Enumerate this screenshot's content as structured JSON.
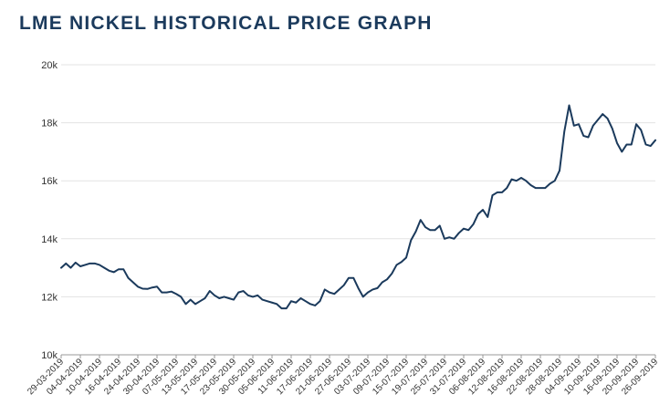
{
  "chart_data": {
    "type": "line",
    "title": "LME NICKEL HISTORICAL PRICE GRAPH",
    "xlabel": "",
    "ylabel": "",
    "ylim": [
      10000,
      20000
    ],
    "y_ticks": [
      10000,
      12000,
      14000,
      16000,
      18000,
      20000
    ],
    "y_tick_labels": [
      "10k",
      "12k",
      "14k",
      "16k",
      "18k",
      "20k"
    ],
    "grid": true,
    "line_color": "#1b3a5c",
    "x_tick_labels": [
      "29-03-2019",
      "04-04-2019",
      "10-04-2019",
      "16-04-2019",
      "24-04-2019",
      "30-04-2019",
      "07-05-2019",
      "13-05-2019",
      "17-05-2019",
      "23-05-2019",
      "30-05-2019",
      "05-06-2019",
      "11-06-2019",
      "17-06-2019",
      "21-06-2019",
      "27-06-2019",
      "03-07-2019",
      "09-07-2019",
      "15-07-2019",
      "19-07-2019",
      "25-07-2019",
      "31-07-2019",
      "06-08-2019",
      "12-08-2019",
      "16-08-2019",
      "22-08-2019",
      "28-08-2019",
      "04-09-2019",
      "10-09-2019",
      "16-09-2019",
      "20-09-2019",
      "26-09-2019"
    ],
    "series": [
      {
        "name": "LME Nickel",
        "values": [
          13000,
          13150,
          13000,
          13180,
          13050,
          13100,
          13150,
          13150,
          13100,
          13000,
          12900,
          12850,
          12950,
          12950,
          12650,
          12500,
          12350,
          12280,
          12270,
          12320,
          12350,
          12150,
          12150,
          12180,
          12100,
          12000,
          11750,
          11900,
          11750,
          11850,
          11950,
          12200,
          12050,
          11950,
          12000,
          11950,
          11900,
          12150,
          12200,
          12050,
          12000,
          12050,
          11900,
          11850,
          11800,
          11750,
          11600,
          11600,
          11850,
          11800,
          11950,
          11850,
          11750,
          11700,
          11850,
          12250,
          12150,
          12100,
          12250,
          12400,
          12650,
          12650,
          12300,
          12000,
          12150,
          12250,
          12300,
          12500,
          12600,
          12800,
          13100,
          13200,
          13350,
          13950,
          14250,
          14650,
          14400,
          14300,
          14300,
          14450,
          14000,
          14050,
          14000,
          14200,
          14350,
          14300,
          14500,
          14850,
          15000,
          14750,
          15500,
          15600,
          15600,
          15750,
          16050,
          16000,
          16100,
          16000,
          15850,
          15750,
          15750,
          15750,
          15900,
          16000,
          16350,
          17700,
          18600,
          17900,
          17950,
          17550,
          17500,
          17900,
          18100,
          18300,
          18150,
          17800,
          17300,
          17000,
          17250,
          17250,
          17950,
          17750,
          17250,
          17200,
          17400
        ]
      }
    ]
  }
}
